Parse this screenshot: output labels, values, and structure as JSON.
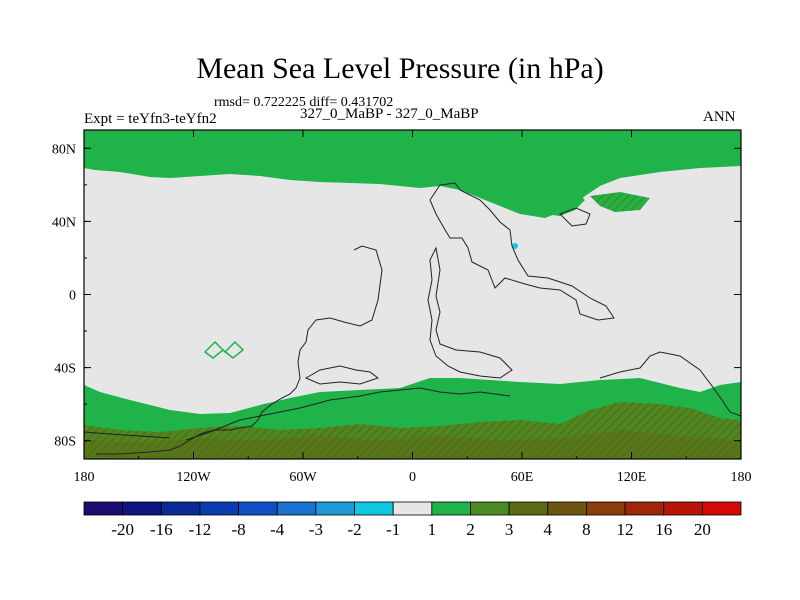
{
  "chart_data": {
    "type": "heatmap",
    "title": "Mean Sea Level Pressure (in hPa)",
    "subtitle": "rmsd= 0.722225 diff= 0.431702",
    "experiment_label": "Expt = teYfn3-teYfn2",
    "case_label": "327_0_MaBP - 327_0_MaBP",
    "season": "ANN",
    "x_ticks": [
      "180",
      "120W",
      "60W",
      "0",
      "60E",
      "120E",
      "180"
    ],
    "x_tick_values": [
      -180,
      -120,
      -60,
      0,
      60,
      120,
      180
    ],
    "y_ticks": [
      "80N",
      "40N",
      "0",
      "40S",
      "80S"
    ],
    "y_tick_values": [
      80,
      40,
      0,
      -40,
      -80
    ],
    "xlim": [
      -180,
      180
    ],
    "ylim": [
      -90,
      90
    ],
    "colorbar": {
      "labels": [
        "-20",
        "-16",
        "-12",
        "-8",
        "-4",
        "-3",
        "-2",
        "-1",
        "1",
        "2",
        "3",
        "4",
        "8",
        "12",
        "16",
        "20"
      ],
      "colors": [
        "#1a0f6e",
        "#0d1680",
        "#0a2a9a",
        "#0a3db0",
        "#1050c4",
        "#1a72d0",
        "#1e99d6",
        "#12c8e0",
        "#e6e6e6",
        "#1fb34a",
        "#4b8a22",
        "#5c6b14",
        "#6e5410",
        "#8a3e0c",
        "#a0260a",
        "#b81408",
        "#d40808"
      ]
    },
    "regions": [
      {
        "band": "north",
        "lat_range": [
          67,
          90
        ],
        "class": "1 to 2",
        "color": "#1fb34a"
      },
      {
        "band": "south",
        "lat_range": [
          -90,
          -60
        ],
        "class": "1 to 2",
        "color": "#1fb34a"
      },
      {
        "band": "south-deep",
        "lat_range": [
          -90,
          -76
        ],
        "class": "2 to 3",
        "color": "#4b8a22"
      },
      {
        "band": "interior",
        "lat_range": [
          -60,
          67
        ],
        "class": "-1 to 1",
        "color": "#e6e6e6"
      }
    ]
  }
}
